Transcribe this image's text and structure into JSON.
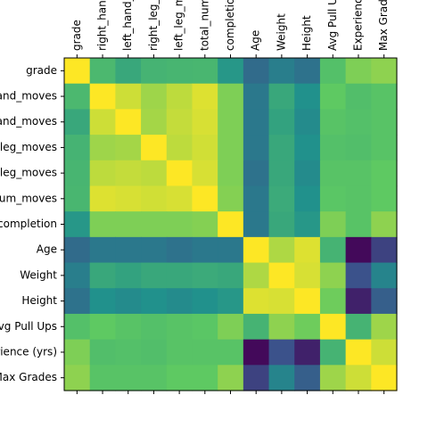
{
  "chart_data": {
    "type": "heatmap",
    "title": "",
    "xlabel": "",
    "ylabel": "",
    "colormap": "viridis",
    "colormap_stops": [
      "#440154",
      "#3b528b",
      "#21918c",
      "#5ec962",
      "#fde725"
    ],
    "value_range": [
      -1,
      1
    ],
    "x_tick_labels": [
      "grade",
      "right_hand_moves",
      "left_hand_moves",
      "right_leg_moves",
      "left_leg_moves",
      "total_num_moves",
      "completion",
      "Age",
      "Weight",
      "Height",
      "Avg Pull Ups",
      "Experience (yrs)",
      "Max Grades"
    ],
    "y_tick_labels": [
      "grade",
      "right_hand_moves",
      "left_hand_moves",
      "right_leg_moves",
      "left_leg_moves",
      "total_num_moves",
      "completion",
      "Age",
      "Weight",
      "Height",
      "Avg Pull Ups",
      "Experience (yrs)",
      "Max Grades"
    ],
    "matrix": [
      [
        1.0,
        0.35,
        0.2,
        0.3,
        0.32,
        0.33,
        0.05,
        -0.3,
        -0.15,
        -0.25,
        0.42,
        0.6,
        0.65
      ],
      [
        0.35,
        1.0,
        0.85,
        0.7,
        0.8,
        0.9,
        0.6,
        -0.2,
        0.2,
        0.0,
        0.5,
        0.4,
        0.45
      ],
      [
        0.2,
        0.85,
        1.0,
        0.72,
        0.82,
        0.88,
        0.6,
        -0.2,
        0.15,
        -0.05,
        0.45,
        0.42,
        0.45
      ],
      [
        0.3,
        0.7,
        0.72,
        1.0,
        0.8,
        0.86,
        0.6,
        -0.2,
        0.2,
        0.0,
        0.42,
        0.4,
        0.45
      ],
      [
        0.32,
        0.8,
        0.82,
        0.8,
        1.0,
        0.88,
        0.6,
        -0.25,
        0.2,
        -0.05,
        0.45,
        0.45,
        0.5
      ],
      [
        0.33,
        0.9,
        0.88,
        0.86,
        0.88,
        1.0,
        0.62,
        -0.2,
        0.22,
        0.0,
        0.47,
        0.45,
        0.5
      ],
      [
        0.05,
        0.6,
        0.6,
        0.6,
        0.6,
        0.62,
        1.0,
        -0.2,
        0.2,
        0.05,
        0.6,
        0.45,
        0.65
      ],
      [
        -0.3,
        -0.2,
        -0.2,
        -0.2,
        -0.25,
        -0.2,
        -0.2,
        1.0,
        0.75,
        0.9,
        0.3,
        -0.95,
        -0.6
      ],
      [
        -0.15,
        0.2,
        0.15,
        0.2,
        0.2,
        0.22,
        0.2,
        0.75,
        1.0,
        0.88,
        0.65,
        -0.5,
        -0.1
      ],
      [
        -0.25,
        0.0,
        -0.05,
        0.0,
        -0.05,
        0.0,
        0.05,
        0.9,
        0.88,
        1.0,
        0.55,
        -0.8,
        -0.4
      ],
      [
        0.42,
        0.5,
        0.45,
        0.42,
        0.45,
        0.47,
        0.6,
        0.3,
        0.65,
        0.55,
        1.0,
        0.3,
        0.7
      ],
      [
        0.6,
        0.4,
        0.42,
        0.4,
        0.45,
        0.45,
        0.45,
        -0.95,
        -0.5,
        -0.8,
        0.3,
        1.0,
        0.85
      ],
      [
        0.65,
        0.45,
        0.45,
        0.45,
        0.5,
        0.5,
        0.65,
        -0.6,
        -0.1,
        -0.4,
        0.7,
        0.85,
        1.0
      ]
    ]
  }
}
